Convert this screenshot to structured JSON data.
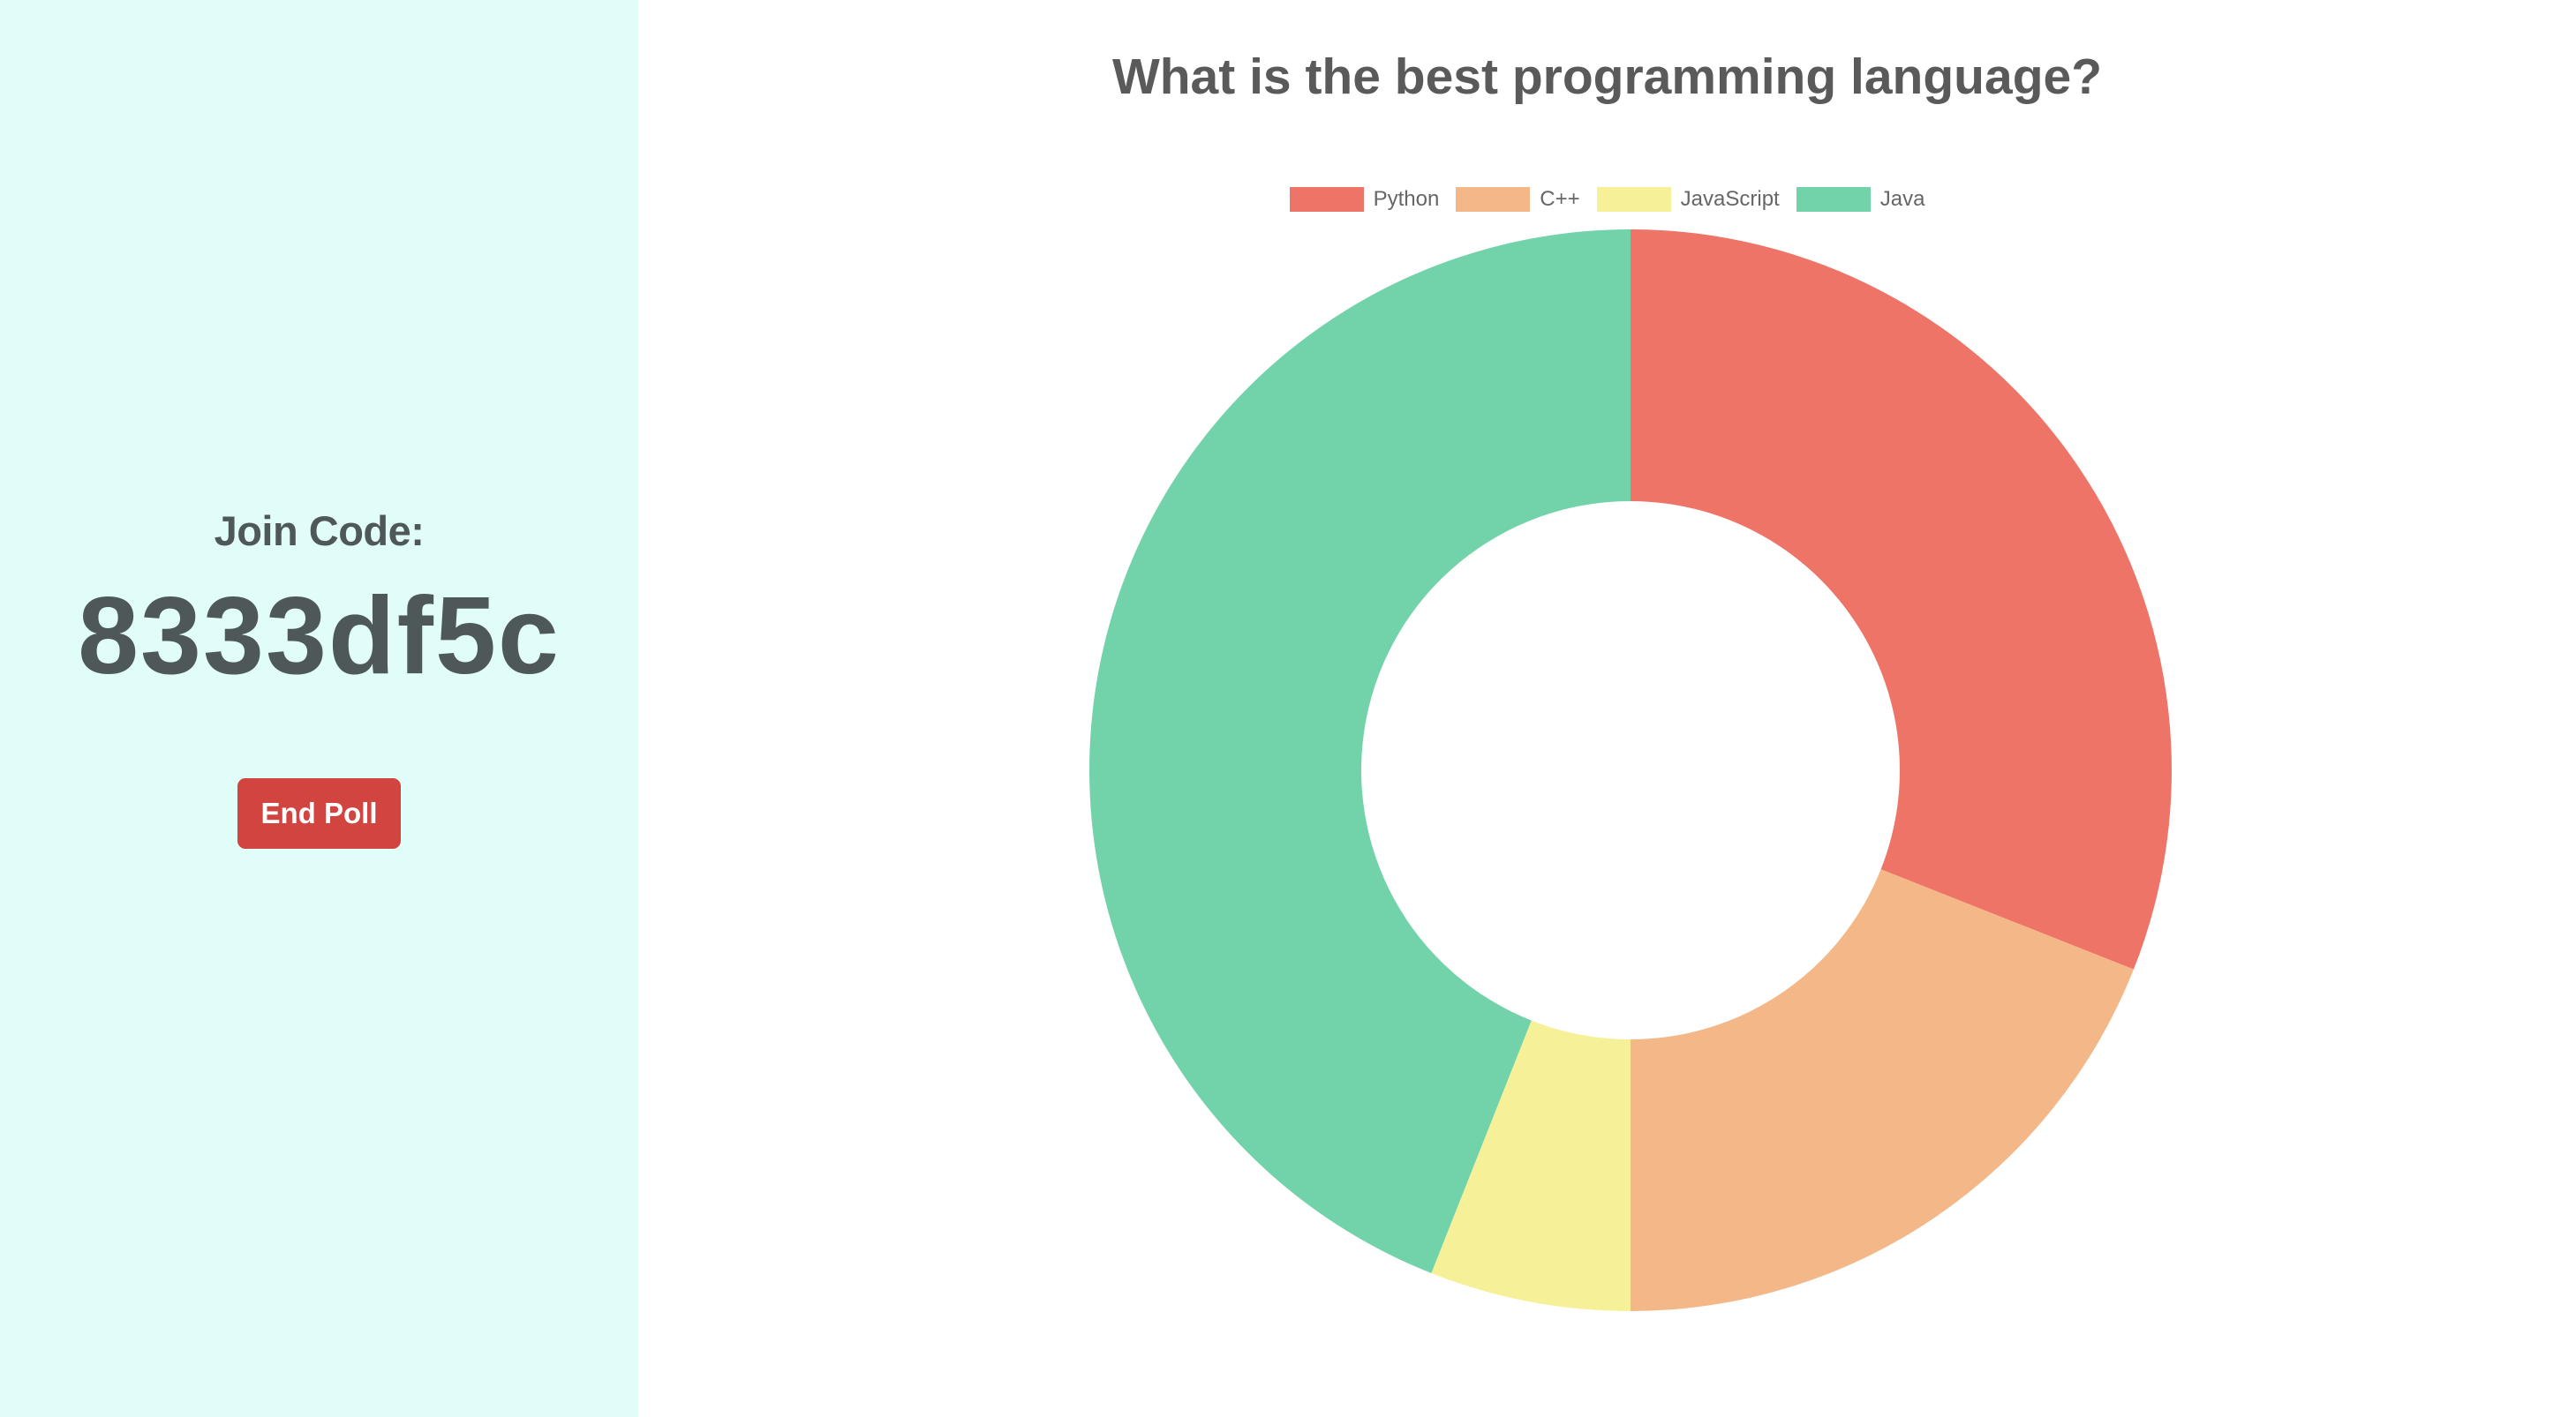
{
  "sidebar": {
    "join_label": "Join Code:",
    "join_code": "8333df5c",
    "end_poll_label": "End Poll",
    "background": "#e0fdfa",
    "button_color": "#d1443f"
  },
  "chart_data": {
    "type": "doughnut",
    "title": "What is the best programming language?",
    "categories": [
      "Python",
      "C++",
      "JavaScript",
      "Java"
    ],
    "values": [
      31,
      19,
      6,
      44
    ],
    "colors": [
      "#ee7468",
      "#f4b788",
      "#f6f199",
      "#72d3aa"
    ],
    "legend_position": "top"
  }
}
